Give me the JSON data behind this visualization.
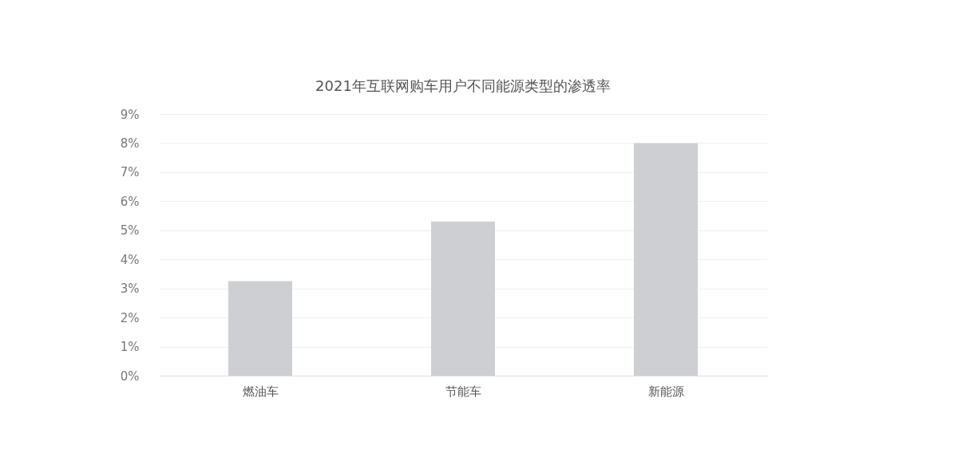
{
  "chart_data": {
    "type": "bar",
    "title": "2021年互联网购车用户不同能源类型的渗透率",
    "categories": [
      "燃油车",
      "节能车",
      "新能源"
    ],
    "values": [
      3.25,
      5.3,
      8.0
    ],
    "color": "#cdcfd2",
    "ylim": [
      0,
      9
    ],
    "yticks": [
      {
        "value": 0,
        "label": "0%"
      },
      {
        "value": 1,
        "label": "1%"
      },
      {
        "value": 2,
        "label": "2%"
      },
      {
        "value": 3,
        "label": "3%"
      },
      {
        "value": 4,
        "label": "4%"
      },
      {
        "value": 5,
        "label": "5%"
      },
      {
        "value": 6,
        "label": "6%"
      },
      {
        "value": 7,
        "label": "7%"
      },
      {
        "value": 8,
        "label": "8%"
      },
      {
        "value": 9,
        "label": "9%"
      }
    ],
    "grid": "y"
  }
}
